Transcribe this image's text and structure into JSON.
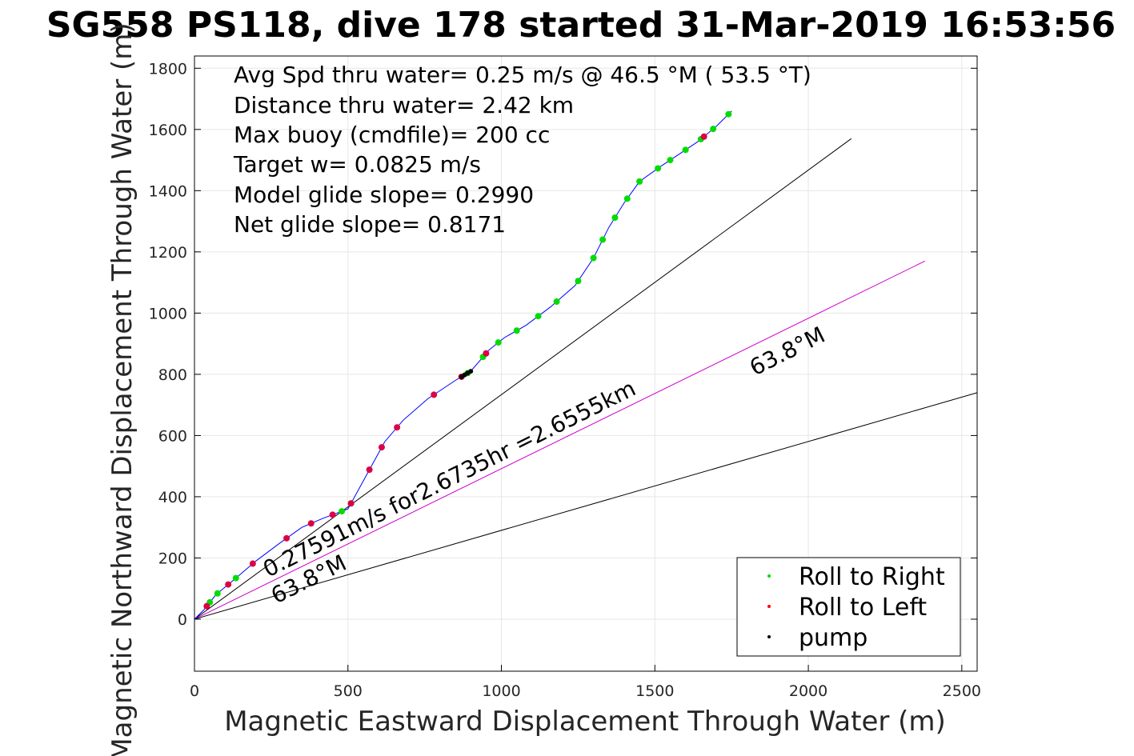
{
  "chart_data": {
    "type": "line",
    "title": "SG558 PS118, dive 178 started 31-Mar-2019 16:53:56",
    "xlabel": "Magnetic Eastward Displacement Through Water (m)",
    "ylabel": "Magnetic Northward Displacement Through Water (m)",
    "xlim": [
      0,
      2550
    ],
    "ylim": [
      -170,
      1840
    ],
    "xticks": [
      0,
      500,
      1000,
      1500,
      2000,
      2500
    ],
    "yticks": [
      0,
      200,
      400,
      600,
      800,
      1000,
      1200,
      1400,
      1600,
      1800
    ],
    "grid": true,
    "annotations": [
      "Avg Spd thru water=  0.25 m/s @  46.5 °M ( 53.5 °T)",
      "Distance thru water=  2.42 km",
      "Max buoy (cmdfile)= 200 cc",
      "Target w= 0.0825 m/s",
      "Model glide slope= 0.2990",
      "Net glide slope= 0.8171"
    ],
    "line_labels": {
      "current": "0.27591m/s for2.6735hr =2.6555km",
      "heading_start": "63.8°M",
      "heading_end": "63.8°M"
    },
    "legend": {
      "placement": "bottom-right",
      "entries": [
        {
          "label": "Roll to Right",
          "color": "#00dd00"
        },
        {
          "label": "Roll to Left",
          "color": "#ff0000"
        },
        {
          "label": "pump",
          "color": "#000000"
        }
      ]
    },
    "track": {
      "color": "#0000ff",
      "x": [
        0,
        30,
        70,
        130,
        200,
        280,
        350,
        420,
        500,
        560,
        620,
        680,
        760,
        850,
        900,
        960,
        1010,
        1080,
        1160,
        1240,
        1300,
        1350,
        1400,
        1450,
        1520,
        1580,
        1640,
        1700,
        1750
      ],
      "y": [
        0,
        30,
        80,
        130,
        190,
        250,
        300,
        330,
        360,
        470,
        580,
        650,
        720,
        780,
        810,
        880,
        920,
        960,
        1020,
        1090,
        1180,
        1280,
        1360,
        1430,
        1480,
        1520,
        1560,
        1610,
        1660
      ]
    },
    "lines": [
      {
        "name": "current-upper",
        "color": "#000000",
        "x": [
          0,
          2140
        ],
        "y": [
          0,
          1570
        ]
      },
      {
        "name": "heading",
        "color": "#cc00cc",
        "x": [
          0,
          2380
        ],
        "y": [
          0,
          1170
        ]
      },
      {
        "name": "current-lower",
        "color": "#000000",
        "x": [
          0,
          2550
        ],
        "y": [
          0,
          740
        ]
      }
    ],
    "roll_right_x": [
      50,
      75,
      135,
      480,
      510,
      890,
      940,
      990,
      1050,
      1120,
      1180,
      1250,
      1300,
      1330,
      1370,
      1410,
      1450,
      1510,
      1550,
      1600,
      1650,
      1690,
      1740
    ],
    "roll_left_x": [
      40,
      110,
      190,
      300,
      380,
      450,
      510,
      570,
      610,
      660,
      780,
      870,
      950,
      1660
    ],
    "pump_x": [
      870,
      880,
      890,
      900
    ]
  },
  "colors": {
    "axis": "#000000",
    "grid": "#e6e6e6",
    "tick_text": "#262626"
  }
}
